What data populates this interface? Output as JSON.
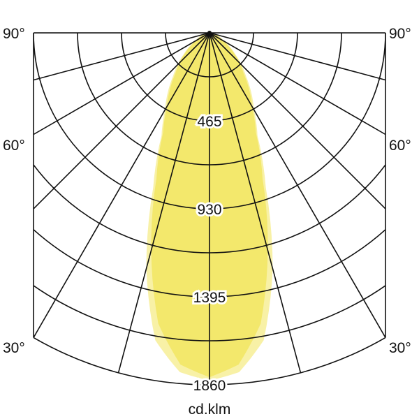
{
  "chart_data": {
    "type": "polar",
    "unit_label": "cd.klm",
    "radial_ticks": [
      465,
      930,
      1395,
      1860
    ],
    "radial_max": 1860,
    "angle_labels": {
      "left": [
        "90°",
        "60°",
        "30°"
      ],
      "right": [
        "90°",
        "60°",
        "30°"
      ]
    },
    "angle_grid_step_deg": 15,
    "colors": {
      "outer": "#f8f1a6",
      "inner": "#f3e86c",
      "grid": "#111111"
    },
    "series": [
      {
        "angles": [
          0,
          5,
          10,
          15,
          20,
          25,
          30,
          40,
          50,
          60,
          75,
          90
        ],
        "values": [
          1838,
          1800,
          1650,
          1290,
          870,
          600,
          470,
          300,
          180,
          90,
          30,
          0
        ]
      },
      {
        "angles": [
          0,
          5,
          10,
          15,
          20,
          25,
          30,
          40,
          50,
          60,
          75,
          90
        ],
        "values": [
          1820,
          1760,
          1560,
          1190,
          820,
          580,
          450,
          280,
          170,
          80,
          25,
          0
        ]
      }
    ]
  }
}
